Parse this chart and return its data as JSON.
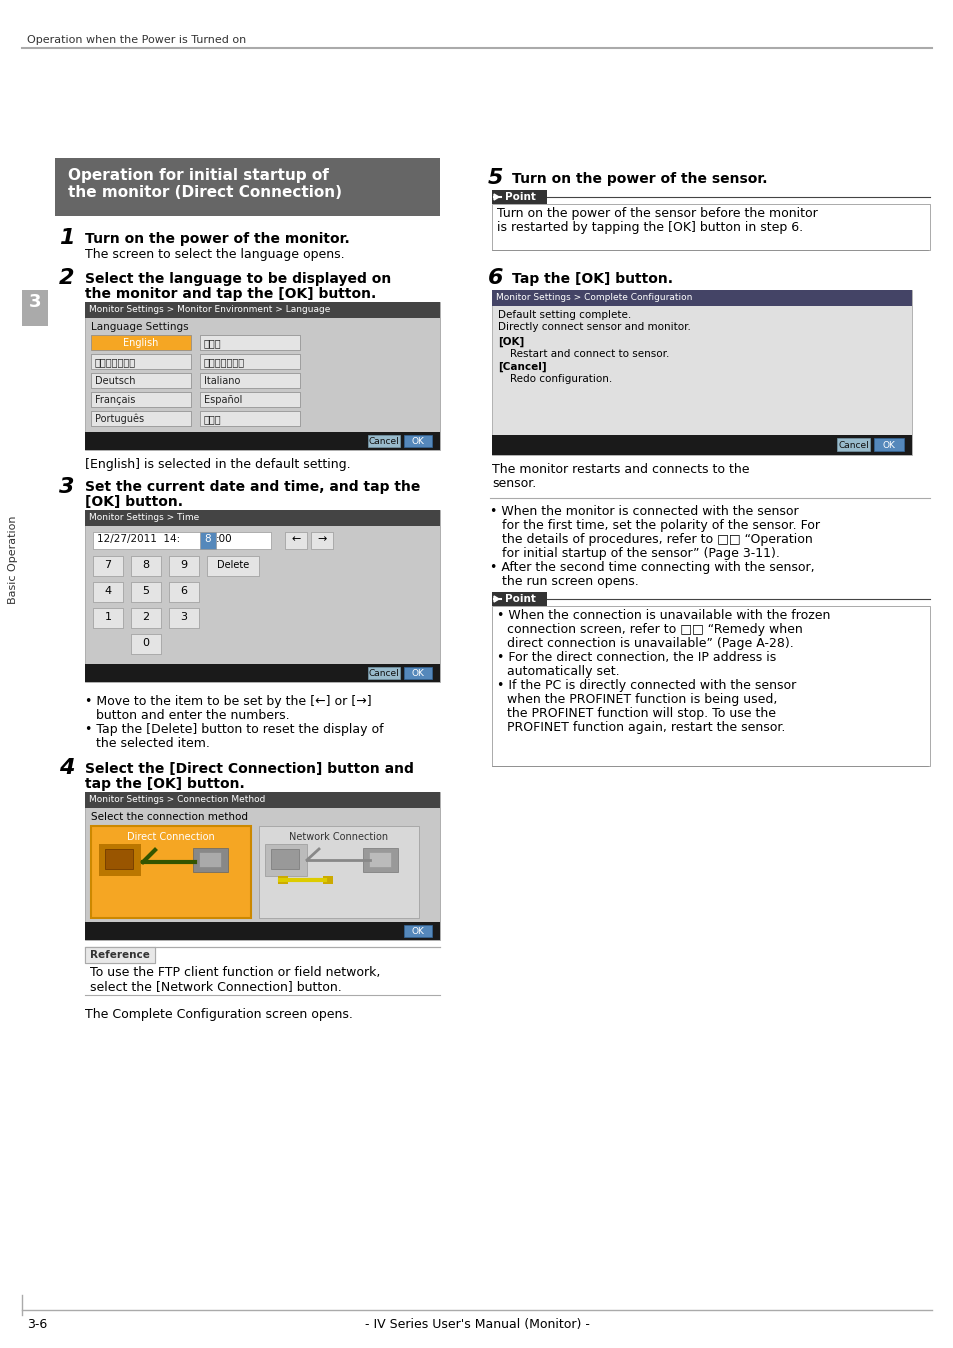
{
  "page_bg": "#ffffff",
  "header_text": "Operation when the Power is Turned on",
  "section_header_bg": "#666666",
  "footer_left": "3-6",
  "footer_center": "- IV Series User's Manual (Monitor) -",
  "orange": "#f5a623",
  "screen_bg": "#cccccc",
  "screen_header_bg": "#444444",
  "dark_bar": "#222222",
  "btn_blue": "#7bafd4",
  "btn_blue2": "#5588bb",
  "light_gray": "#e0e0e0",
  "mid_gray": "#999999",
  "ref_gray": "#dddddd"
}
